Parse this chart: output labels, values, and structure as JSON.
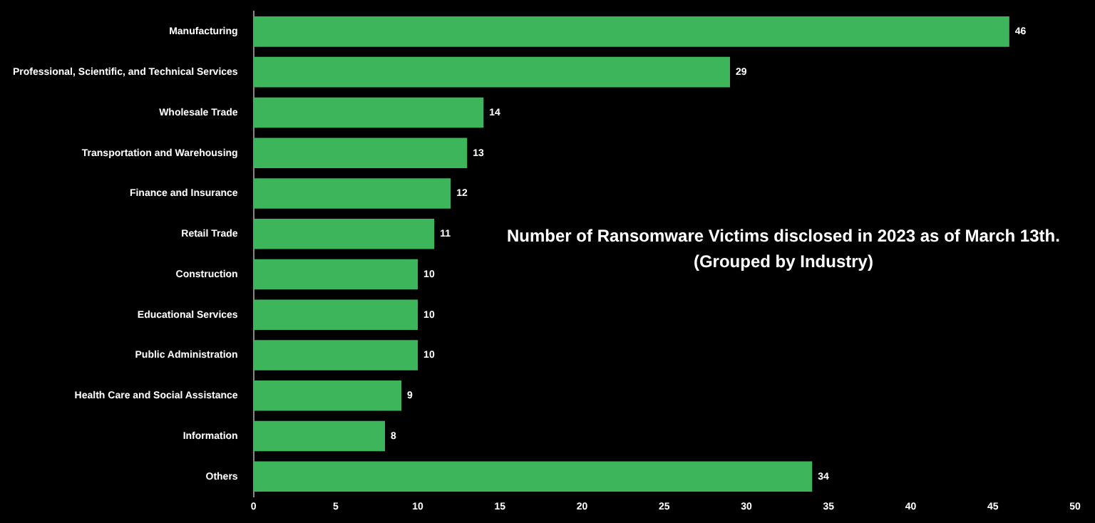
{
  "chart_data": {
    "type": "bar",
    "orientation": "horizontal",
    "title": "Number of Ransomware Victims disclosed in 2023 as of March 13th.",
    "subtitle": "(Grouped by Industry)",
    "categories": [
      "Manufacturing",
      "Professional, Scientific, and Technical Services",
      "Wholesale Trade",
      "Transportation and Warehousing",
      "Finance and Insurance",
      "Retail Trade",
      "Construction",
      "Educational Services",
      "Public Administration",
      "Health Care and Social Assistance",
      "Information",
      "Others"
    ],
    "values": [
      46,
      29,
      14,
      13,
      12,
      11,
      10,
      10,
      10,
      9,
      8,
      34
    ],
    "color": "#3cb55b",
    "xlim": [
      0,
      50
    ],
    "xticks": [
      0,
      5,
      10,
      15,
      20,
      25,
      30,
      35,
      40,
      45,
      50
    ],
    "grid": false,
    "legend": false,
    "data_labels": true
  }
}
